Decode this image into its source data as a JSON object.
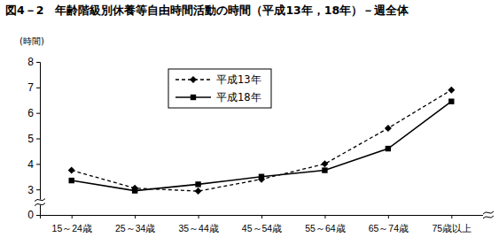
{
  "chart_data": {
    "type": "line",
    "title": "図4－2　年齢階級別休養等自由時間活動の時間（平成13年，18年）－週全体",
    "y_label": "(時間)",
    "categories": [
      "15～24歳",
      "25～34歳",
      "35～44歳",
      "45～54歳",
      "55～64歳",
      "65～74歳",
      "75歳以上"
    ],
    "series": [
      {
        "name": "平成13年",
        "color": "#000000",
        "marker": "diamond",
        "line_style": "dashed",
        "values": [
          3.75,
          3.05,
          2.8,
          3.4,
          4.0,
          5.4,
          6.9
        ]
      },
      {
        "name": "平成18年",
        "color": "#000000",
        "marker": "square",
        "line_style": "solid",
        "values": [
          3.35,
          2.85,
          3.2,
          3.5,
          3.75,
          4.6,
          6.45
        ]
      }
    ],
    "ylim": [
      0,
      8
    ],
    "yticks": [
      0,
      3,
      4,
      5,
      6,
      7,
      8
    ],
    "grid": false,
    "legend": "top-left"
  }
}
